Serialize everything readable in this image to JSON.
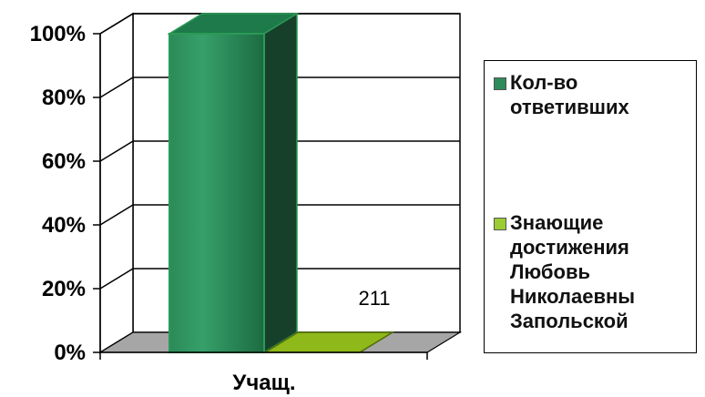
{
  "chart_data": {
    "type": "bar",
    "categories": [
      "Учащ."
    ],
    "series": [
      {
        "name": "Кол-во ответивших",
        "values": [
          100
        ],
        "color": "#2e8b5a"
      },
      {
        "name": "Знающие достижения Любовь Николаевны Запольской",
        "values": [
          0
        ],
        "color": "#9acd32"
      }
    ],
    "data_labels": [
      "211"
    ],
    "ylim": [
      0,
      100
    ],
    "yticks": [
      "0%",
      "20%",
      "40%",
      "60%",
      "80%",
      "100%"
    ],
    "xlabel": "Учащ.",
    "grid": true,
    "legend_position": "right",
    "style": "3d-column"
  },
  "legend": {
    "items": [
      {
        "label": "Кол-во\nответивших",
        "color": "#2e8b5a"
      },
      {
        "label": "Знающие\nдостижения\nЛюбовь\nНиколаевны\nЗапольской",
        "color": "#9acd32"
      }
    ]
  }
}
